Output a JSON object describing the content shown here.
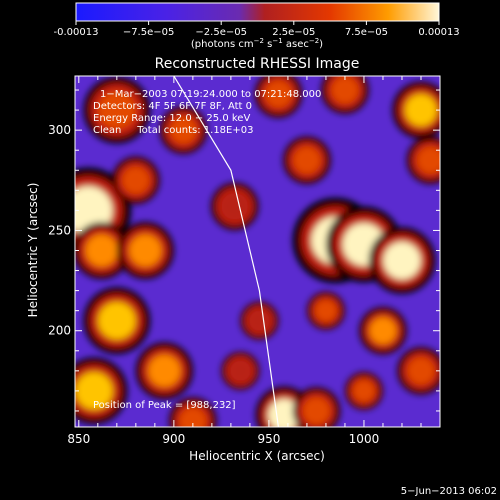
{
  "colorbar": {
    "tick_labels": [
      "-0.00013",
      "−7.5e−05",
      "−2.5e−05",
      "2.5e−05",
      "7.5e−05",
      "0.00013"
    ],
    "units_main": "(photons cm",
    "units_sup1": "−2",
    "units_mid1": " s",
    "units_sup2": "−1",
    "units_mid2": " asec",
    "units_sup3": "−2",
    "units_end": ")",
    "range": [
      -0.00013,
      0.00013
    ],
    "colors": [
      "#1a1aff",
      "#5b2bd0",
      "#b02020",
      "#e03000",
      "#ff9400",
      "#fff6c8"
    ]
  },
  "chart_data": {
    "type": "heatmap",
    "title": "Reconstructed RHESSI Image",
    "xlabel": "Heliocentric X (arcsec)",
    "ylabel": "Heliocentric Y (arcsec)",
    "x_ticks": [
      "850",
      "900",
      "950",
      "1000"
    ],
    "y_ticks": [
      "200",
      "250",
      "300"
    ],
    "x_tick_values": [
      850,
      900,
      950,
      1000
    ],
    "y_tick_values": [
      200,
      250,
      300
    ],
    "xlim": [
      848,
      1040
    ],
    "ylim": [
      152,
      327
    ],
    "annotations": [
      "1−Mar−2003 07:19:24.000 to 07:21:48.000",
      "Detectors: 4F 5F 6F 7F 8F, Att 0",
      "Energy Range: 12.0 − 25.0 keV",
      "Clean     Total counts: 1.18E+03"
    ],
    "peak_label": "Position of Peak = [988,232]",
    "peak_position": [
      988,
      232
    ],
    "limb_curve": [
      [
        900,
        327
      ],
      [
        930,
        280
      ],
      [
        945,
        220
      ],
      [
        955,
        152
      ]
    ],
    "blobs": [
      {
        "x": 870,
        "y": 310,
        "r": 14,
        "v": 0.6
      },
      {
        "x": 855,
        "y": 260,
        "r": 18,
        "v": 1.0
      },
      {
        "x": 862,
        "y": 240,
        "r": 12,
        "v": 0.7
      },
      {
        "x": 880,
        "y": 275,
        "r": 10,
        "v": 0.5
      },
      {
        "x": 885,
        "y": 240,
        "r": 12,
        "v": 0.75
      },
      {
        "x": 870,
        "y": 205,
        "r": 14,
        "v": 0.8
      },
      {
        "x": 858,
        "y": 170,
        "r": 14,
        "v": 0.9
      },
      {
        "x": 895,
        "y": 180,
        "r": 12,
        "v": 0.65
      },
      {
        "x": 910,
        "y": 155,
        "r": 10,
        "v": 0.55
      },
      {
        "x": 905,
        "y": 300,
        "r": 10,
        "v": 0.55
      },
      {
        "x": 932,
        "y": 262,
        "r": 10,
        "v": 0.45
      },
      {
        "x": 945,
        "y": 205,
        "r": 8,
        "v": 0.4
      },
      {
        "x": 958,
        "y": 158,
        "r": 12,
        "v": 0.95
      },
      {
        "x": 985,
        "y": 245,
        "r": 18,
        "v": 0.95
      },
      {
        "x": 1000,
        "y": 243,
        "r": 16,
        "v": 1.0
      },
      {
        "x": 1020,
        "y": 235,
        "r": 14,
        "v": 0.95
      },
      {
        "x": 970,
        "y": 285,
        "r": 10,
        "v": 0.6
      },
      {
        "x": 1030,
        "y": 310,
        "r": 12,
        "v": 0.8
      },
      {
        "x": 1035,
        "y": 285,
        "r": 10,
        "v": 0.55
      },
      {
        "x": 1010,
        "y": 200,
        "r": 10,
        "v": 0.7
      },
      {
        "x": 980,
        "y": 210,
        "r": 8,
        "v": 0.5
      },
      {
        "x": 1030,
        "y": 180,
        "r": 10,
        "v": 0.6
      },
      {
        "x": 975,
        "y": 160,
        "r": 10,
        "v": 0.6
      },
      {
        "x": 1000,
        "y": 170,
        "r": 8,
        "v": 0.5
      },
      {
        "x": 955,
        "y": 318,
        "r": 10,
        "v": 0.5
      },
      {
        "x": 990,
        "y": 320,
        "r": 10,
        "v": 0.55
      },
      {
        "x": 935,
        "y": 180,
        "r": 8,
        "v": 0.45
      }
    ],
    "grid": false
  },
  "footer": {
    "date": "5−Jun−2013 06:02"
  }
}
